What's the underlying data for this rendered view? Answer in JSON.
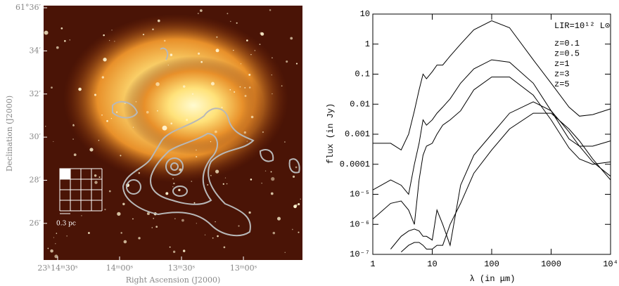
{
  "chart_data": [
    {
      "type": "image",
      "xlabel": "Right Ascension (J2000)",
      "ylabel": "Declination (J2000)",
      "xlim": [
        876.8,
        751.4
      ],
      "xticks": [
        {
          "value": 870,
          "label": "23ʰ14ᵐ30ˢ"
        },
        {
          "value": 840,
          "label": "14ᵐ00ˢ"
        },
        {
          "value": 810,
          "label": "13ᵐ30ˢ"
        },
        {
          "value": 780,
          "label": "13ᵐ00ˢ"
        }
      ],
      "ylim": [
        24.3,
        36.1
      ],
      "yticks": [
        {
          "value": 36,
          "label": "61°36′"
        },
        {
          "value": 34,
          "label": "34′"
        },
        {
          "value": 32,
          "label": "32′"
        },
        {
          "value": 30,
          "label": "30′"
        },
        {
          "value": 28,
          "label": "28′"
        },
        {
          "value": 26,
          "label": "26′"
        }
      ],
      "scale_bar_label": "0.3 pc"
    },
    {
      "type": "line",
      "xlabel": "λ (in μm)",
      "ylabel": "flux (in Jy)",
      "annotation": "LIR=10¹² L⊙",
      "log_x": true,
      "log_y": true,
      "xlim": [
        1,
        10000
      ],
      "xticks": [
        1,
        10,
        100,
        1000,
        {
          "value": 10000,
          "label": "10⁴"
        }
      ],
      "ylim": [
        1e-07,
        10
      ],
      "yticks": [
        10,
        1,
        0.1,
        0.01,
        0.001,
        0.0001,
        {
          "value": 1e-05,
          "label": "10⁻⁵"
        },
        {
          "value": 1e-06,
          "label": "10⁻⁶"
        },
        {
          "value": 1e-07,
          "label": "10⁻⁷"
        }
      ],
      "x": [
        1,
        2,
        3,
        4,
        5,
        6,
        7,
        8,
        10,
        12,
        15,
        20,
        30,
        50,
        100,
        200,
        500,
        1000,
        2000,
        3000,
        5000,
        10000
      ],
      "series": [
        {
          "name": "z=0.1",
          "color": "#000000",
          "values": [
            0.0005,
            0.0005,
            0.0003,
            0.001,
            0.006,
            0.03,
            0.1,
            0.07,
            0.12,
            0.2,
            0.2,
            0.4,
            1,
            3,
            6,
            3.5,
            0.3,
            0.05,
            0.008,
            0.004,
            0.0045,
            0.007
          ]
        },
        {
          "name": "z=0.5",
          "color": "#000000",
          "values": [
            1.4e-05,
            3e-05,
            2e-05,
            1e-05,
            0.0001,
            0.0005,
            0.003,
            0.002,
            0.003,
            0.005,
            0.008,
            0.015,
            0.05,
            0.15,
            0.3,
            0.25,
            0.05,
            0.006,
            0.0007,
            0.0004,
            0.0004,
            0.0006
          ]
        },
        {
          "name": "z=1",
          "color": "#000000",
          "values": [
            1.5e-06,
            5e-06,
            6e-06,
            3e-06,
            1e-06,
            3e-05,
            0.0002,
            0.0004,
            0.0005,
            0.001,
            0.002,
            0.003,
            0.006,
            0.03,
            0.08,
            0.08,
            0.02,
            0.003,
            0.00035,
            0.00015,
            0.0001,
            0.00012
          ]
        },
        {
          "name": "z=3",
          "color": "#000000",
          "values": [
            null,
            1.5e-07,
            4e-07,
            6e-07,
            7e-07,
            6e-07,
            4e-07,
            4e-07,
            3e-07,
            3e-06,
            1e-06,
            2e-07,
            2e-05,
            0.0002,
            0.001,
            0.005,
            0.012,
            0.006,
            0.0012,
            0.0004,
            0.00012,
            4e-05
          ]
        },
        {
          "name": "z=5",
          "color": "#000000",
          "values": [
            null,
            null,
            1.2e-07,
            2e-07,
            2.5e-07,
            2.5e-07,
            2e-07,
            1.5e-07,
            1.5e-07,
            2e-07,
            2e-07,
            1e-06,
            5e-06,
            5e-05,
            0.0003,
            0.0015,
            0.005,
            0.005,
            0.0015,
            0.0006,
            0.00015,
            3e-05
          ]
        }
      ]
    }
  ]
}
